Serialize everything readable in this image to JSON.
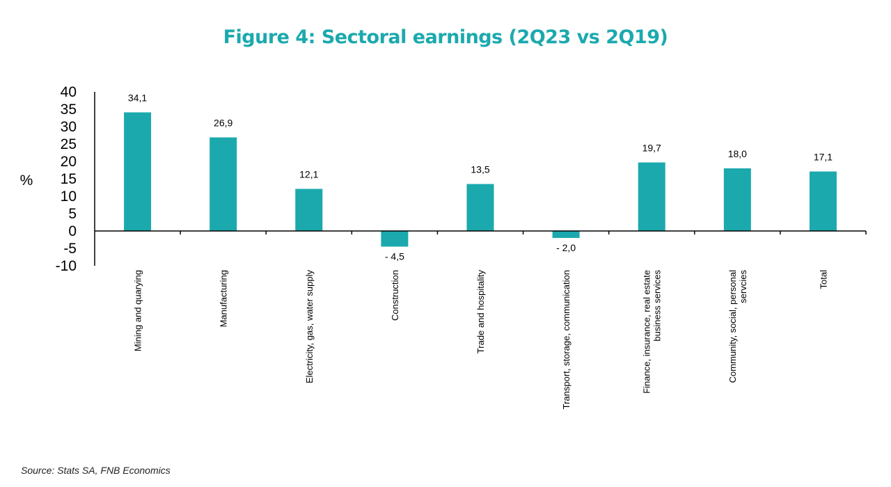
{
  "chart_data": {
    "type": "bar",
    "title": "Figure 4: Sectoral earnings (2Q23 vs 2Q19)",
    "ylabel": "%",
    "xlabel": "",
    "ylim": [
      -10,
      40
    ],
    "yticks": [
      40,
      35,
      30,
      25,
      20,
      15,
      10,
      5,
      0,
      -5,
      -10
    ],
    "grid": false,
    "legend": "none",
    "bar_color": "#1ba9ae",
    "categories": [
      [
        "Mining and quarying"
      ],
      [
        "Manufacturing"
      ],
      [
        "Electricity, gas, water supply"
      ],
      [
        "Construction"
      ],
      [
        "Trade and hospitality"
      ],
      [
        "Transport, storage, communication"
      ],
      [
        "Finance, insurance, real estate",
        "business services"
      ],
      [
        "Community, social, personal",
        "servcies"
      ],
      [
        "Total"
      ]
    ],
    "values": [
      34.1,
      26.9,
      12.1,
      -4.5,
      13.5,
      -2.0,
      19.7,
      18.0,
      17.1
    ],
    "data_labels": [
      "34,1",
      "26,9",
      "12,1",
      "- 4,5",
      "13,5",
      "- 2,0",
      "19,7",
      "18,0",
      "17,1"
    ]
  },
  "source": "Source: Stats SA, FNB Economics"
}
